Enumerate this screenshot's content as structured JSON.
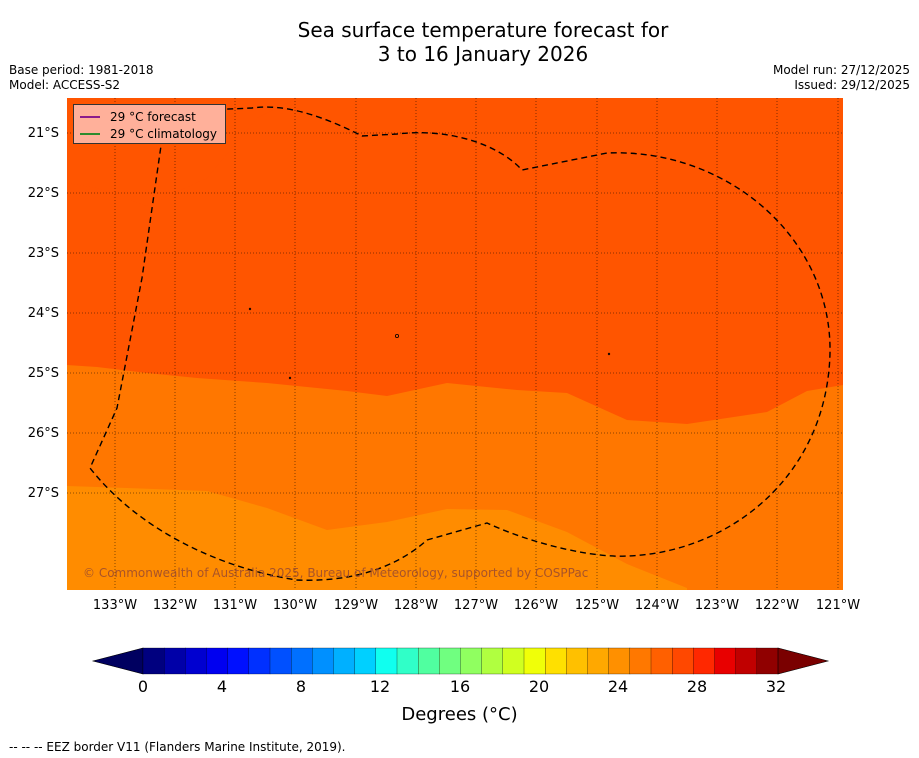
{
  "title_line1": "Sea surface temperature forecast for",
  "title_line2": "3 to 16 January 2026",
  "base_period": "Base period: 1981-2018",
  "model": "Model: ACCESS-S2",
  "model_run": "Model run: 27/12/2025",
  "issued": "Issued: 29/12/2025",
  "legend": {
    "forecast_label": "29 °C  forecast",
    "forecast_color": "#8b1a8b",
    "climatology_label": "29 °C  climatology",
    "climatology_color": "#2e8b2e"
  },
  "copyright": "© Commonwealth of Australia 2025, Bureau of Meteorology, supported by COSPPac",
  "lat_labels": [
    "21°S",
    "22°S",
    "23°S",
    "24°S",
    "25°S",
    "26°S",
    "27°S"
  ],
  "lon_labels": [
    "133°W",
    "132°W",
    "131°W",
    "130°W",
    "129°W",
    "128°W",
    "127°W",
    "126°W",
    "125°W",
    "124°W",
    "123°W",
    "122°W",
    "121°W"
  ],
  "colorbar": {
    "title": "Degrees (°C)",
    "ticks": [
      "0",
      "4",
      "8",
      "12",
      "16",
      "20",
      "24",
      "28",
      "32"
    ],
    "colors": [
      "#00007f",
      "#0000a8",
      "#0000d0",
      "#0000f0",
      "#0010ff",
      "#0030ff",
      "#0050ff",
      "#0070ff",
      "#0090ff",
      "#00b0ff",
      "#00d0ff",
      "#10ffef",
      "#30ffc8",
      "#50ffa0",
      "#70ff80",
      "#90ff60",
      "#b0ff40",
      "#d0ff20",
      "#f0ff08",
      "#ffe000",
      "#ffc000",
      "#ffa800",
      "#ff9000",
      "#ff7800",
      "#ff6000",
      "#ff4800",
      "#ff2800",
      "#e80000",
      "#c00000",
      "#900000"
    ],
    "under_color": "#000060",
    "over_color": "#7a0000"
  },
  "map_colors": {
    "hot": "#ff5500",
    "warm": "#ff7700",
    "cool": "#ff8c00"
  },
  "footnote": "-- -- -- EEZ border V11 (Flanders Marine Institute, 2019)."
}
